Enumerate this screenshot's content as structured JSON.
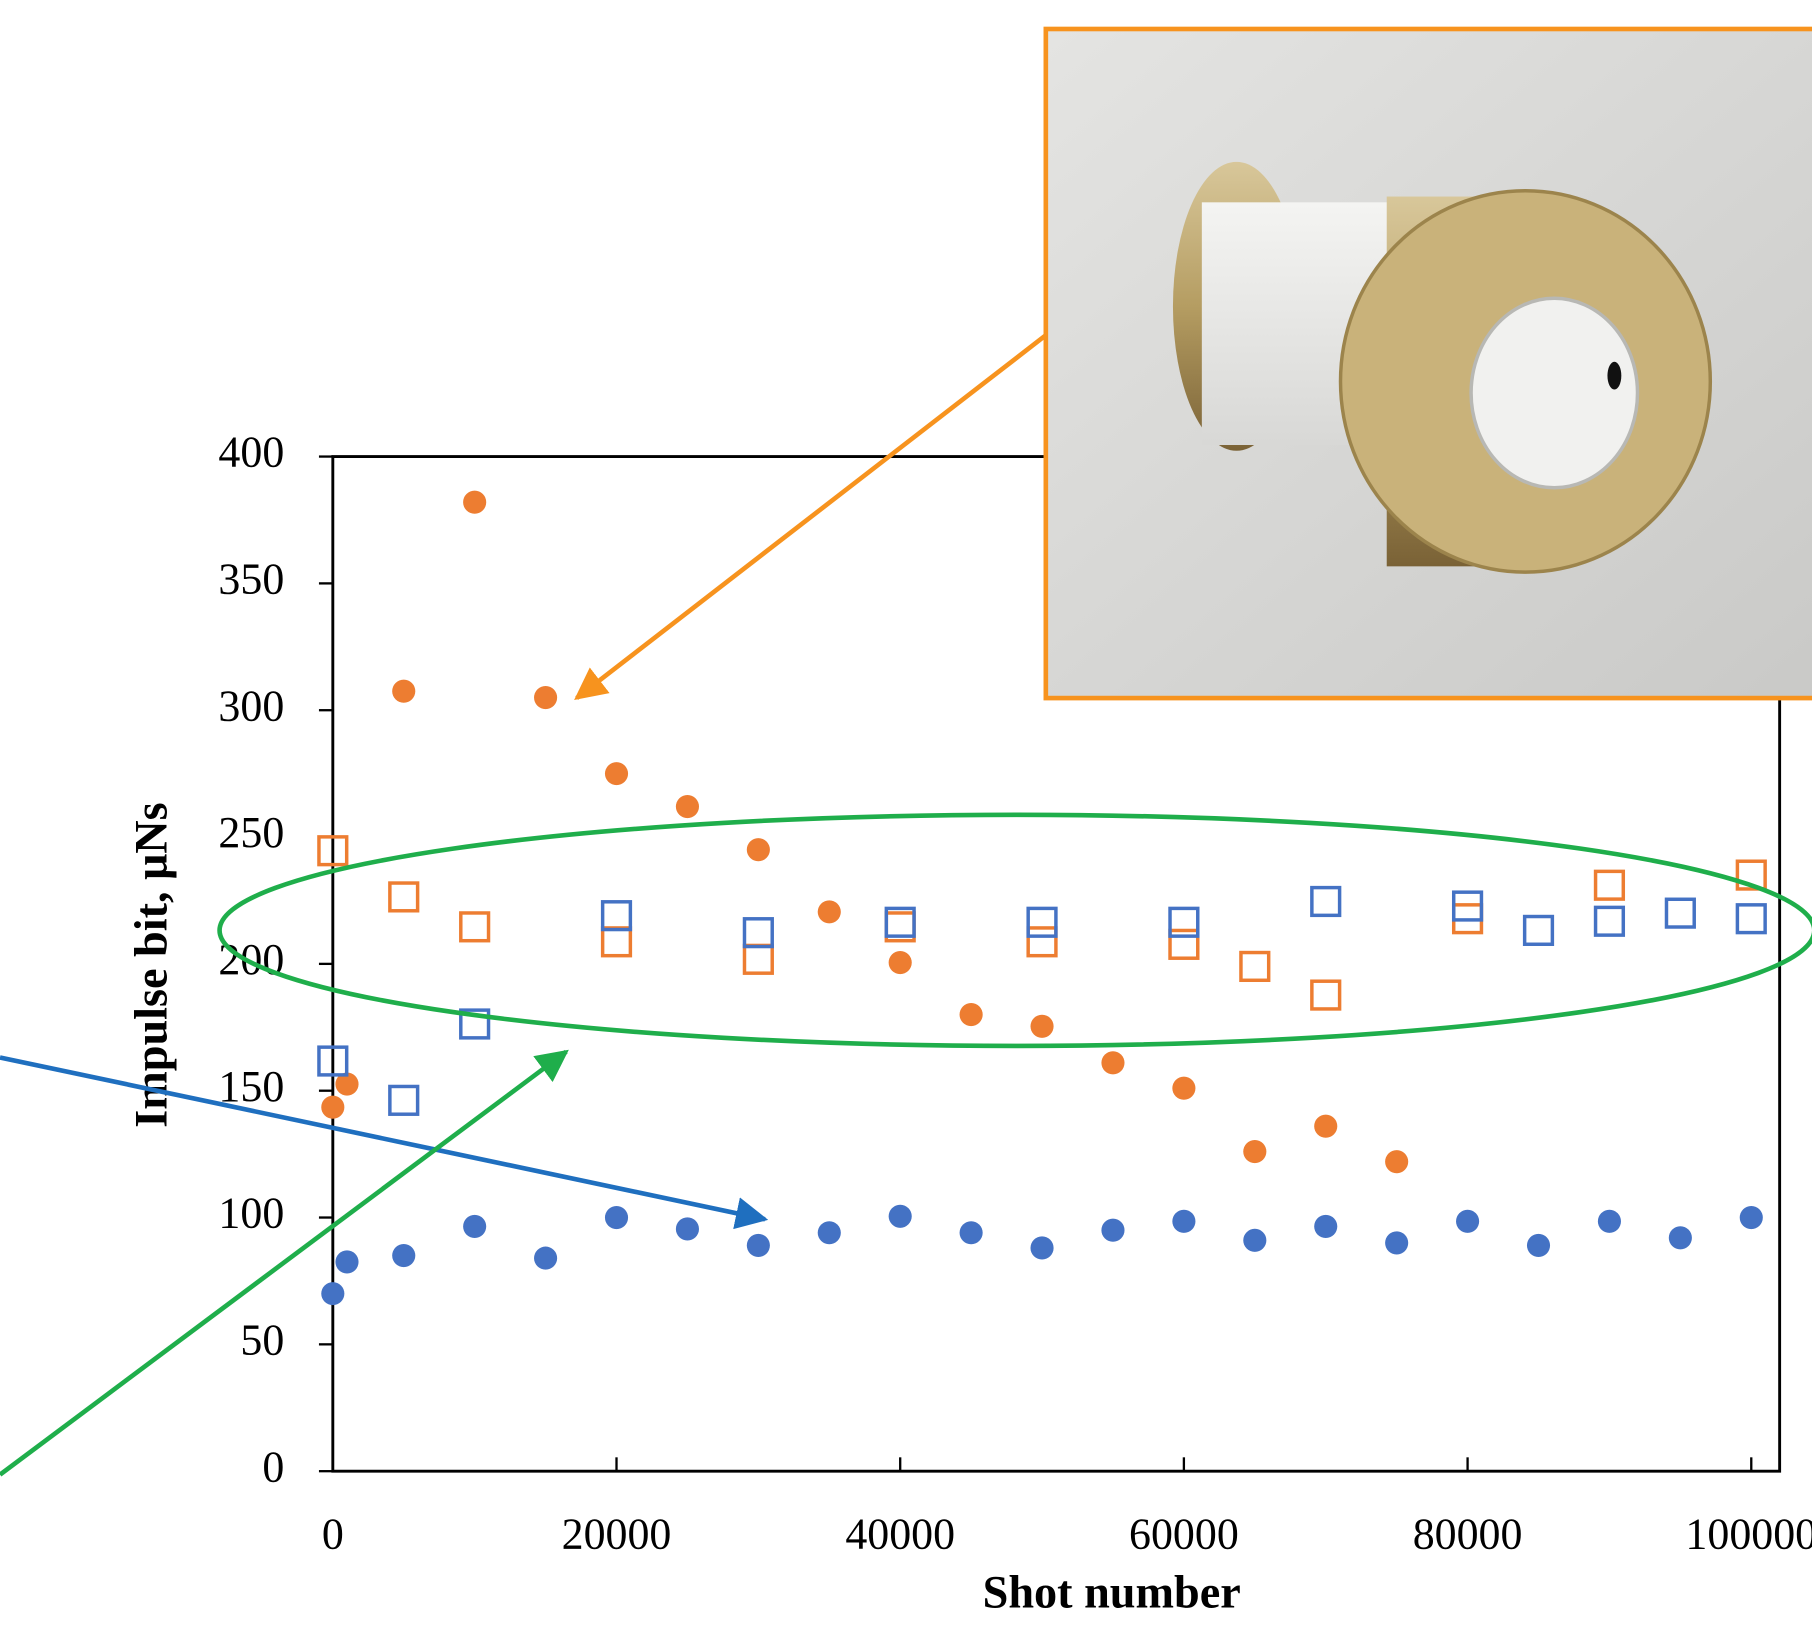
{
  "chart_data": {
    "type": "scatter",
    "xlabel": "Shot number",
    "ylabel": "Impulse bit, μNs",
    "xlim": [
      0,
      102000
    ],
    "xticks": [
      0,
      20000,
      40000,
      60000,
      80000,
      100000
    ],
    "ylim": [
      0,
      400
    ],
    "yticks": [
      0,
      50,
      100,
      150,
      200,
      250,
      300,
      350,
      400
    ],
    "grid": false,
    "series": [
      {
        "marker": "circle",
        "filled": true,
        "color": "#ed7d31",
        "x": [
          0,
          1000,
          5000,
          10000,
          15000,
          20000,
          25000,
          30000,
          35000,
          40000,
          45000,
          50000,
          55000,
          60000,
          65000,
          70000,
          75000
        ],
        "values": [
          143.5,
          152.6,
          307.5,
          382,
          305,
          275,
          262,
          245,
          220.5,
          200.5,
          180,
          175.4,
          161,
          151,
          126,
          136,
          122
        ]
      },
      {
        "marker": "circle",
        "filled": true,
        "color": "#4472c4",
        "x": [
          0,
          1000,
          5000,
          10000,
          15000,
          20000,
          25000,
          30000,
          35000,
          40000,
          45000,
          50000,
          55000,
          60000,
          65000,
          70000,
          75000,
          80000,
          85000,
          90000,
          95000,
          100000
        ],
        "values": [
          70,
          82.5,
          85,
          96.5,
          84,
          100,
          95.5,
          89,
          94,
          100.5,
          94,
          88,
          95,
          98.5,
          91,
          96.5,
          90,
          98.5,
          89,
          98.5,
          92,
          100
        ]
      },
      {
        "marker": "square",
        "filled": false,
        "color": "#ed7d31",
        "x": [
          0,
          5000,
          10000,
          20000,
          30000,
          40000,
          50000,
          60000,
          65000,
          70000,
          80000,
          90000,
          100000
        ],
        "values": [
          244.6,
          226.4,
          214.6,
          208.7,
          201.8,
          214.6,
          208.7,
          207.7,
          199,
          187.7,
          217.8,
          231,
          235
        ]
      },
      {
        "marker": "square",
        "filled": false,
        "color": "#4472c4",
        "x": [
          0,
          5000,
          10000,
          20000,
          30000,
          40000,
          50000,
          60000,
          70000,
          80000,
          85000,
          90000,
          95000,
          100000
        ],
        "values": [
          161.7,
          146.2,
          176.3,
          219,
          212.3,
          216.4,
          216.4,
          216.4,
          224.6,
          222.8,
          213.2,
          216.8,
          220,
          217.8
        ]
      }
    ]
  }
}
